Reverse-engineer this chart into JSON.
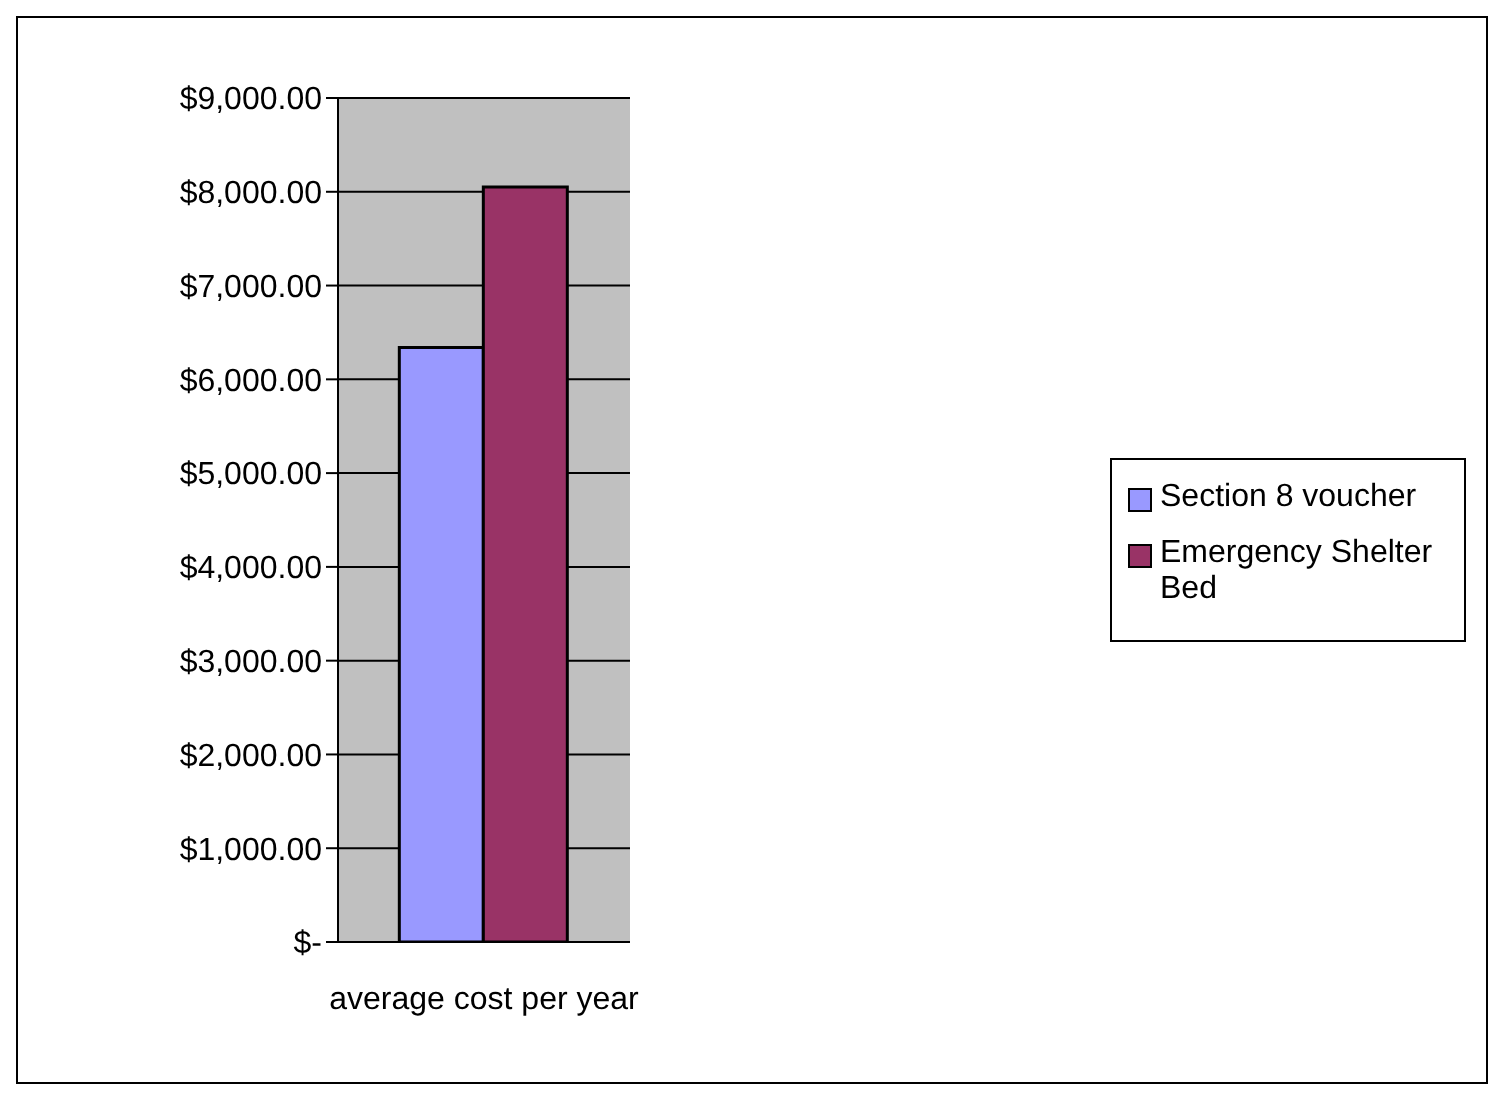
{
  "chart_data": {
    "type": "bar",
    "categories": [
      "average cost per year"
    ],
    "series": [
      {
        "name": "Section 8 voucher",
        "color": "#9999ff",
        "values": [
          6340
        ]
      },
      {
        "name": "Emergency Shelter Bed",
        "color": "#993366",
        "values": [
          8050
        ]
      }
    ],
    "ylim": [
      0,
      9000
    ],
    "yticks": [
      {
        "value": 0,
        "label": "$-"
      },
      {
        "value": 1000,
        "label": "$1,000.00"
      },
      {
        "value": 2000,
        "label": "$2,000.00"
      },
      {
        "value": 3000,
        "label": "$3,000.00"
      },
      {
        "value": 4000,
        "label": "$4,000.00"
      },
      {
        "value": 5000,
        "label": "$5,000.00"
      },
      {
        "value": 6000,
        "label": "$6,000.00"
      },
      {
        "value": 7000,
        "label": "$7,000.00"
      },
      {
        "value": 8000,
        "label": "$8,000.00"
      },
      {
        "value": 9000,
        "label": "$9,000.00"
      }
    ],
    "grid": "y",
    "legend": "right"
  }
}
